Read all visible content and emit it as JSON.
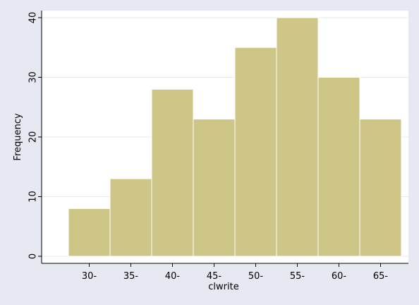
{
  "chart_data": {
    "type": "bar",
    "title": "",
    "xlabel": "clwrite",
    "ylabel": "Frequency",
    "categories": [
      "30-",
      "35-",
      "40-",
      "45-",
      "50-",
      "55-",
      "60-",
      "65-"
    ],
    "values": [
      8,
      13,
      28,
      23,
      35,
      40,
      30,
      23
    ],
    "ylim": [
      0,
      40
    ],
    "yticks": [
      0,
      10,
      20,
      30,
      40
    ],
    "grid": true,
    "colors": {
      "bar_fill": "#cdc687",
      "bar_stroke": "#ffffff",
      "plot_background": "#ffffff",
      "outer_background": "#e6e9f2",
      "grid": "#e6e9f2",
      "axis": "#000000"
    }
  }
}
